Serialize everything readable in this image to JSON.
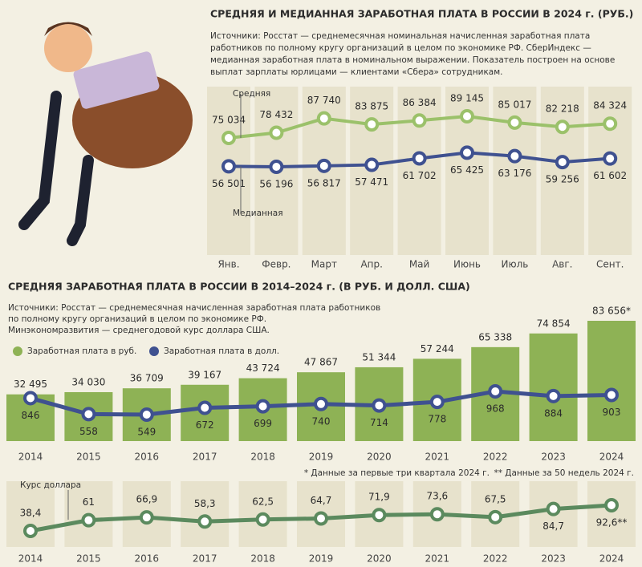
{
  "chart_data": [
    {
      "type": "line",
      "title": "СРЕДНЯЯ И МЕДИАННАЯ ЗАРАБОТНАЯ ПЛАТА В РОССИИ В 2024 г. (РУБ.)",
      "source_lines": [
        "Источники: Росстат — среднемесячная номинальная начисленная заработная плата",
        "работников по полному кругу организаций в целом по экономике РФ. СберИндекс —",
        "медианная заработная плата в номинальном выражении. Показатель построен на основе",
        "выплат зарплаты юрлицами — клиентами «Сбера» сотрудникам."
      ],
      "categories": [
        "Янв.",
        "Февр.",
        "Март",
        "Апр.",
        "Май",
        "Июнь",
        "Июль",
        "Авг.",
        "Сент."
      ],
      "series": [
        {
          "name": "Средняя",
          "color": "#9bc16a",
          "values": [
            75034,
            78432,
            87740,
            83875,
            86384,
            89145,
            85017,
            82218,
            84324
          ],
          "value_labels": [
            "75 034",
            "78 432",
            "87 740",
            "83 875",
            "86 384",
            "89 145",
            "85 017",
            "82 218",
            "84 324"
          ]
        },
        {
          "name": "Медианная",
          "color": "#3f5190",
          "values": [
            56501,
            56196,
            56817,
            57471,
            61702,
            65425,
            63176,
            59256,
            61602
          ],
          "value_labels": [
            "56 501",
            "56 196",
            "56 817",
            "57 471",
            "61 702",
            "65 425",
            "63 176",
            "59 256",
            "61 602"
          ]
        }
      ]
    },
    {
      "type": "bar_line",
      "title": "СРЕДНЯЯ ЗАРАБОТНАЯ ПЛАТА В РОССИИ В 2014–2024 г. (В РУБ. И ДОЛЛ. США)",
      "source_lines": [
        "Источники: Росстат — среднемесячная начисленная заработная плата работников",
        "по полному кругу организаций в целом по экономике РФ.",
        "Минэкономразвития — среднегодовой курс доллара США."
      ],
      "categories": [
        "2014",
        "2015",
        "2016",
        "2017",
        "2018",
        "2019",
        "2020",
        "2021",
        "2022",
        "2023",
        "2024"
      ],
      "series": [
        {
          "name": "Заработная плата в руб.",
          "type": "bar",
          "color": "#8eb255",
          "values": [
            32495,
            34030,
            36709,
            39167,
            43724,
            47867,
            51344,
            57244,
            65338,
            74854,
            83656
          ],
          "value_labels": [
            "32 495",
            "34 030",
            "36 709",
            "39 167",
            "43 724",
            "47 867",
            "51 344",
            "57 244",
            "65 338",
            "74 854",
            "83 656*"
          ]
        },
        {
          "name": "Заработная плата в долл.",
          "type": "line",
          "axis": "y2",
          "color": "#3f5190",
          "values": [
            846,
            558,
            549,
            672,
            699,
            740,
            714,
            778,
            968,
            884,
            903
          ]
        }
      ],
      "notes": [
        "* Данные за первые три квартала 2024 г.",
        "** Данные за 50 недель 2024 г."
      ]
    },
    {
      "type": "line",
      "title": "Курс доллара",
      "categories": [
        "2014",
        "2015",
        "2016",
        "2017",
        "2018",
        "2019",
        "2020",
        "2021",
        "2022",
        "2023",
        "2024"
      ],
      "color": "#5b8a5e",
      "values": [
        38.4,
        61,
        66.9,
        58.3,
        62.5,
        64.7,
        71.9,
        73.6,
        67.5,
        84.7,
        92.6
      ],
      "value_labels": [
        "38,4",
        "61",
        "66,9",
        "58,3",
        "62,5",
        "64,7",
        "71,9",
        "73,6",
        "67,5",
        "84,7",
        "92,6**"
      ]
    }
  ]
}
